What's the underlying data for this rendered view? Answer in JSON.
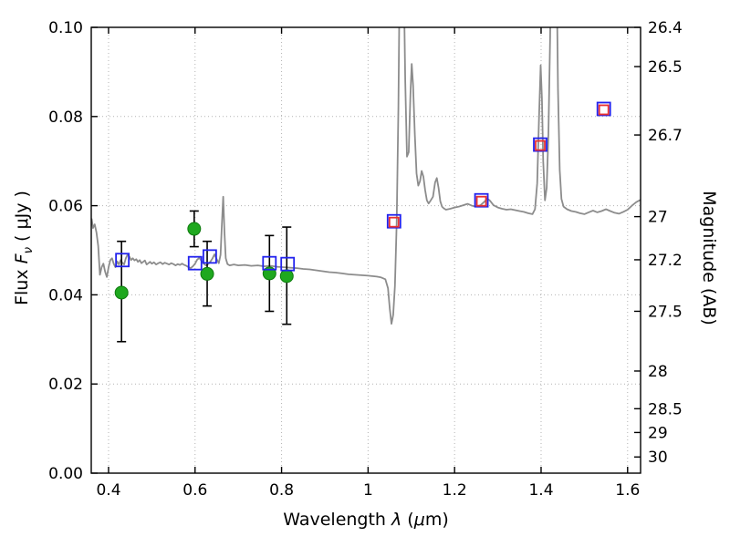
{
  "figure": {
    "background": "#ffffff",
    "xlabel": {
      "prefix": "Wavelength ",
      "lambda": "λ",
      "mid": " (",
      "mu": "μ",
      "suffix": "m)"
    },
    "ylabel_left": {
      "prefix": "Flux ",
      "symbol": "F",
      "sub": "ν",
      "suffix": " ( μJy )"
    },
    "ylabel_right": "Magnitude (AB)"
  },
  "chart_data": {
    "type": "line",
    "xlabel": "Wavelength λ (μm)",
    "ylabel_left": "Flux Fν ( μJy )",
    "ylabel_right": "Magnitude (AB)",
    "xlim": [
      0.36,
      1.63
    ],
    "ylim_flux": [
      0.0,
      0.1
    ],
    "grid": true,
    "legend": "none",
    "ab_zeropoint_microjansky": 23.9,
    "x_ticks": {
      "values": [
        0.4,
        0.6,
        0.8,
        1.0,
        1.2,
        1.4,
        1.6
      ],
      "labels": [
        "0.4",
        "0.6",
        "0.8",
        "1",
        "1.2",
        "1.4",
        "1.6"
      ]
    },
    "y_ticks_left": {
      "values": [
        0.0,
        0.02,
        0.04,
        0.06,
        0.08,
        0.1
      ],
      "labels": [
        "0.00",
        "0.02",
        "0.04",
        "0.06",
        "0.08",
        "0.10"
      ]
    },
    "y_ticks_right": {
      "values": [
        26.4,
        26.5,
        26.7,
        27.0,
        27.2,
        27.5,
        28.0,
        28.5,
        29.0,
        30.0
      ],
      "labels": [
        "26.4",
        "26.5",
        "26.7",
        "27",
        "27.2",
        "27.5",
        "28",
        "28.5",
        "29",
        "30"
      ]
    },
    "colors": {
      "spectrum": "#8c8c8c",
      "model_blue": "#2222ee",
      "model_red": "#e83030",
      "observed": "#1fa81f",
      "error": "#000000",
      "frame": "#000000",
      "grid": "#b3b3b3"
    },
    "series": {
      "spectrum": {
        "name": "model-spectrum",
        "x": [
          0.355,
          0.358,
          0.361,
          0.364,
          0.368,
          0.372,
          0.376,
          0.38,
          0.384,
          0.388,
          0.392,
          0.396,
          0.4,
          0.404,
          0.408,
          0.412,
          0.416,
          0.42,
          0.424,
          0.428,
          0.432,
          0.436,
          0.44,
          0.444,
          0.448,
          0.452,
          0.456,
          0.46,
          0.464,
          0.468,
          0.472,
          0.476,
          0.48,
          0.484,
          0.488,
          0.492,
          0.496,
          0.5,
          0.505,
          0.51,
          0.515,
          0.52,
          0.525,
          0.53,
          0.535,
          0.54,
          0.545,
          0.55,
          0.555,
          0.56,
          0.565,
          0.57,
          0.575,
          0.58,
          0.585,
          0.59,
          0.595,
          0.6,
          0.605,
          0.61,
          0.615,
          0.62,
          0.625,
          0.63,
          0.635,
          0.64,
          0.645,
          0.65,
          0.655,
          0.659,
          0.662,
          0.665,
          0.668,
          0.671,
          0.675,
          0.68,
          0.69,
          0.7,
          0.715,
          0.73,
          0.745,
          0.76,
          0.775,
          0.79,
          0.805,
          0.82,
          0.835,
          0.85,
          0.865,
          0.88,
          0.895,
          0.91,
          0.925,
          0.94,
          0.955,
          0.97,
          0.985,
          1.0,
          1.01,
          1.02,
          1.03,
          1.04,
          1.046,
          1.05,
          1.054,
          1.058,
          1.062,
          1.066,
          1.07,
          1.074,
          1.078,
          1.082,
          1.086,
          1.09,
          1.094,
          1.098,
          1.101,
          1.104,
          1.108,
          1.112,
          1.116,
          1.12,
          1.124,
          1.128,
          1.132,
          1.136,
          1.14,
          1.145,
          1.15,
          1.155,
          1.159,
          1.163,
          1.167,
          1.171,
          1.175,
          1.18,
          1.19,
          1.2,
          1.21,
          1.22,
          1.23,
          1.24,
          1.25,
          1.26,
          1.268,
          1.276,
          1.282,
          1.29,
          1.3,
          1.31,
          1.32,
          1.33,
          1.34,
          1.35,
          1.36,
          1.37,
          1.38,
          1.386,
          1.391,
          1.395,
          1.399,
          1.402,
          1.405,
          1.409,
          1.413,
          1.417,
          1.421,
          1.425,
          1.43,
          1.435,
          1.439,
          1.443,
          1.447,
          1.452,
          1.46,
          1.47,
          1.48,
          1.49,
          1.5,
          1.51,
          1.52,
          1.53,
          1.54,
          1.55,
          1.56,
          1.57,
          1.58,
          1.59,
          1.6,
          1.61,
          1.62,
          1.63
        ],
        "y": [
          0.0525,
          0.0555,
          0.057,
          0.055,
          0.0558,
          0.054,
          0.051,
          0.0445,
          0.0462,
          0.047,
          0.0452,
          0.044,
          0.0462,
          0.0478,
          0.0482,
          0.047,
          0.0462,
          0.0475,
          0.0468,
          0.0478,
          0.0472,
          0.0468,
          0.0482,
          0.049,
          0.0486,
          0.0478,
          0.0482,
          0.0477,
          0.048,
          0.0474,
          0.0478,
          0.0471,
          0.0474,
          0.0477,
          0.0468,
          0.0471,
          0.0474,
          0.047,
          0.0473,
          0.0468,
          0.0471,
          0.0473,
          0.0469,
          0.0472,
          0.047,
          0.0468,
          0.0471,
          0.0469,
          0.0466,
          0.0469,
          0.0467,
          0.047,
          0.0467,
          0.0465,
          0.0462,
          0.046,
          0.0464,
          0.047,
          0.0479,
          0.0483,
          0.0476,
          0.047,
          0.0466,
          0.0469,
          0.0474,
          0.0481,
          0.0491,
          0.048,
          0.0471,
          0.049,
          0.056,
          0.062,
          0.054,
          0.0482,
          0.0469,
          0.0466,
          0.0468,
          0.0466,
          0.0467,
          0.0465,
          0.0466,
          0.0464,
          0.0465,
          0.0463,
          0.0462,
          0.0461,
          0.046,
          0.0458,
          0.0457,
          0.0455,
          0.0453,
          0.0451,
          0.045,
          0.0448,
          0.0446,
          0.0445,
          0.0444,
          0.0443,
          0.0442,
          0.0441,
          0.0439,
          0.0435,
          0.0415,
          0.037,
          0.0335,
          0.0355,
          0.042,
          0.056,
          0.082,
          0.12,
          0.135,
          0.115,
          0.088,
          0.071,
          0.072,
          0.085,
          0.0918,
          0.087,
          0.076,
          0.0672,
          0.0645,
          0.0655,
          0.0678,
          0.0665,
          0.0635,
          0.0612,
          0.0605,
          0.0612,
          0.062,
          0.0652,
          0.0662,
          0.064,
          0.061,
          0.0598,
          0.0594,
          0.0591,
          0.0593,
          0.0596,
          0.0598,
          0.0601,
          0.0604,
          0.06,
          0.0598,
          0.0601,
          0.0608,
          0.0616,
          0.0611,
          0.0601,
          0.0596,
          0.0593,
          0.0591,
          0.0592,
          0.059,
          0.0588,
          0.0586,
          0.0583,
          0.0581,
          0.0592,
          0.065,
          0.079,
          0.0915,
          0.084,
          0.07,
          0.0612,
          0.064,
          0.076,
          0.098,
          0.13,
          0.142,
          0.12,
          0.086,
          0.068,
          0.0615,
          0.0598,
          0.0592,
          0.0588,
          0.0586,
          0.0583,
          0.0581,
          0.0585,
          0.0589,
          0.0585,
          0.0588,
          0.0592,
          0.0588,
          0.0584,
          0.0582,
          0.0586,
          0.0591,
          0.06,
          0.0608,
          0.0613
        ]
      },
      "green_circles": {
        "name": "observed-photometry",
        "marker": "filled-circle",
        "points_format": [
          "x_um",
          "flux_uJy",
          "err_minus",
          "err_plus"
        ],
        "points": [
          [
            0.43,
            0.0405,
            0.011,
            0.0115
          ],
          [
            0.598,
            0.0548,
            0.004,
            0.004
          ],
          [
            0.628,
            0.0447,
            0.0072,
            0.0073
          ],
          [
            0.772,
            0.0448,
            0.0085,
            0.0085
          ],
          [
            0.812,
            0.0442,
            0.0108,
            0.011
          ]
        ]
      },
      "blue_squares": {
        "name": "model-band-photometry",
        "marker": "open-square",
        "points": [
          [
            0.432,
            0.0478
          ],
          [
            0.6,
            0.0471
          ],
          [
            0.634,
            0.0486
          ],
          [
            0.772,
            0.0471
          ],
          [
            0.814,
            0.0469
          ],
          [
            1.06,
            0.0565
          ],
          [
            1.262,
            0.0612
          ],
          [
            1.398,
            0.0737
          ],
          [
            1.545,
            0.0817
          ]
        ]
      },
      "red_squares": {
        "name": "ir-band-photometry",
        "marker": "open-square",
        "points": [
          [
            1.06,
            0.0563
          ],
          [
            1.262,
            0.061
          ],
          [
            1.398,
            0.0735
          ],
          [
            1.545,
            0.0815
          ]
        ]
      }
    }
  }
}
